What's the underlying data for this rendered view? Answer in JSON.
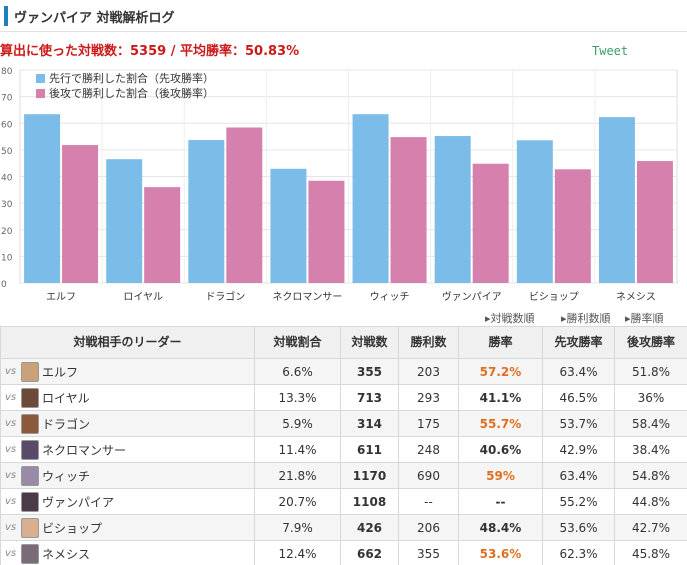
{
  "header": {
    "title": "ヴァンパイア 対戦解析ログ"
  },
  "summary": {
    "text": "算出に使った対戦数：5359 / 平均勝率：50.83%"
  },
  "tweet_label": "Tweet",
  "colors": {
    "first": "#7bbde8",
    "second": "#d580ad",
    "hi_winrate": "#e07020",
    "accent": "#1e7fbf"
  },
  "chart_data": {
    "type": "bar",
    "categories": [
      "エルフ",
      "ロイヤル",
      "ドラゴン",
      "ネクロマンサー",
      "ウィッチ",
      "ヴァンパイア",
      "ビショップ",
      "ネメシス"
    ],
    "series": [
      {
        "name": "先行で勝利した割合（先攻勝率）",
        "values": [
          63.4,
          46.5,
          53.7,
          42.9,
          63.4,
          55.2,
          53.6,
          62.3
        ]
      },
      {
        "name": "後攻で勝利した割合（後攻勝率）",
        "values": [
          51.8,
          36,
          58.4,
          38.4,
          54.8,
          44.8,
          42.7,
          45.8
        ]
      }
    ],
    "yticks": [
      "0",
      "10",
      "20",
      "30",
      "40",
      "50",
      "60",
      "70",
      "80"
    ],
    "ylim": [
      0,
      80
    ],
    "grid": true,
    "legend": "top-left"
  },
  "sort_options": [
    "▸対戦数順",
    "▸勝利数順",
    "▸勝率順"
  ],
  "table": {
    "headers": [
      "対戦相手のリーダー",
      "対戦割合",
      "対戦数",
      "勝利数",
      "勝率",
      "先攻勝率",
      "後攻勝率"
    ],
    "vs_label": "vs",
    "rows": [
      {
        "leader": "エルフ",
        "ratio": "6.6%",
        "games": "355",
        "wins": "203",
        "winrate": "57.2%",
        "hi": true,
        "first": "63.4%",
        "second": "51.8%",
        "avatar": "#c9a27a"
      },
      {
        "leader": "ロイヤル",
        "ratio": "13.3%",
        "games": "713",
        "wins": "293",
        "winrate": "41.1%",
        "hi": false,
        "first": "46.5%",
        "second": "36%",
        "avatar": "#6b4a3a"
      },
      {
        "leader": "ドラゴン",
        "ratio": "5.9%",
        "games": "314",
        "wins": "175",
        "winrate": "55.7%",
        "hi": true,
        "first": "53.7%",
        "second": "58.4%",
        "avatar": "#8a5a3a"
      },
      {
        "leader": "ネクロマンサー",
        "ratio": "11.4%",
        "games": "611",
        "wins": "248",
        "winrate": "40.6%",
        "hi": false,
        "first": "42.9%",
        "second": "38.4%",
        "avatar": "#5a4a6a"
      },
      {
        "leader": "ウィッチ",
        "ratio": "21.8%",
        "games": "1170",
        "wins": "690",
        "winrate": "59%",
        "hi": true,
        "first": "63.4%",
        "second": "54.8%",
        "avatar": "#9a8aa8"
      },
      {
        "leader": "ヴァンパイア",
        "ratio": "20.7%",
        "games": "1108",
        "wins": "--",
        "winrate": "--",
        "hi": false,
        "first": "55.2%",
        "second": "44.8%",
        "avatar": "#4a3a4a"
      },
      {
        "leader": "ビショップ",
        "ratio": "7.9%",
        "games": "426",
        "wins": "206",
        "winrate": "48.4%",
        "hi": false,
        "first": "53.6%",
        "second": "42.7%",
        "avatar": "#d8b090"
      },
      {
        "leader": "ネメシス",
        "ratio": "12.4%",
        "games": "662",
        "wins": "355",
        "winrate": "53.6%",
        "hi": true,
        "first": "62.3%",
        "second": "45.8%",
        "avatar": "#7a6a7a"
      }
    ]
  }
}
